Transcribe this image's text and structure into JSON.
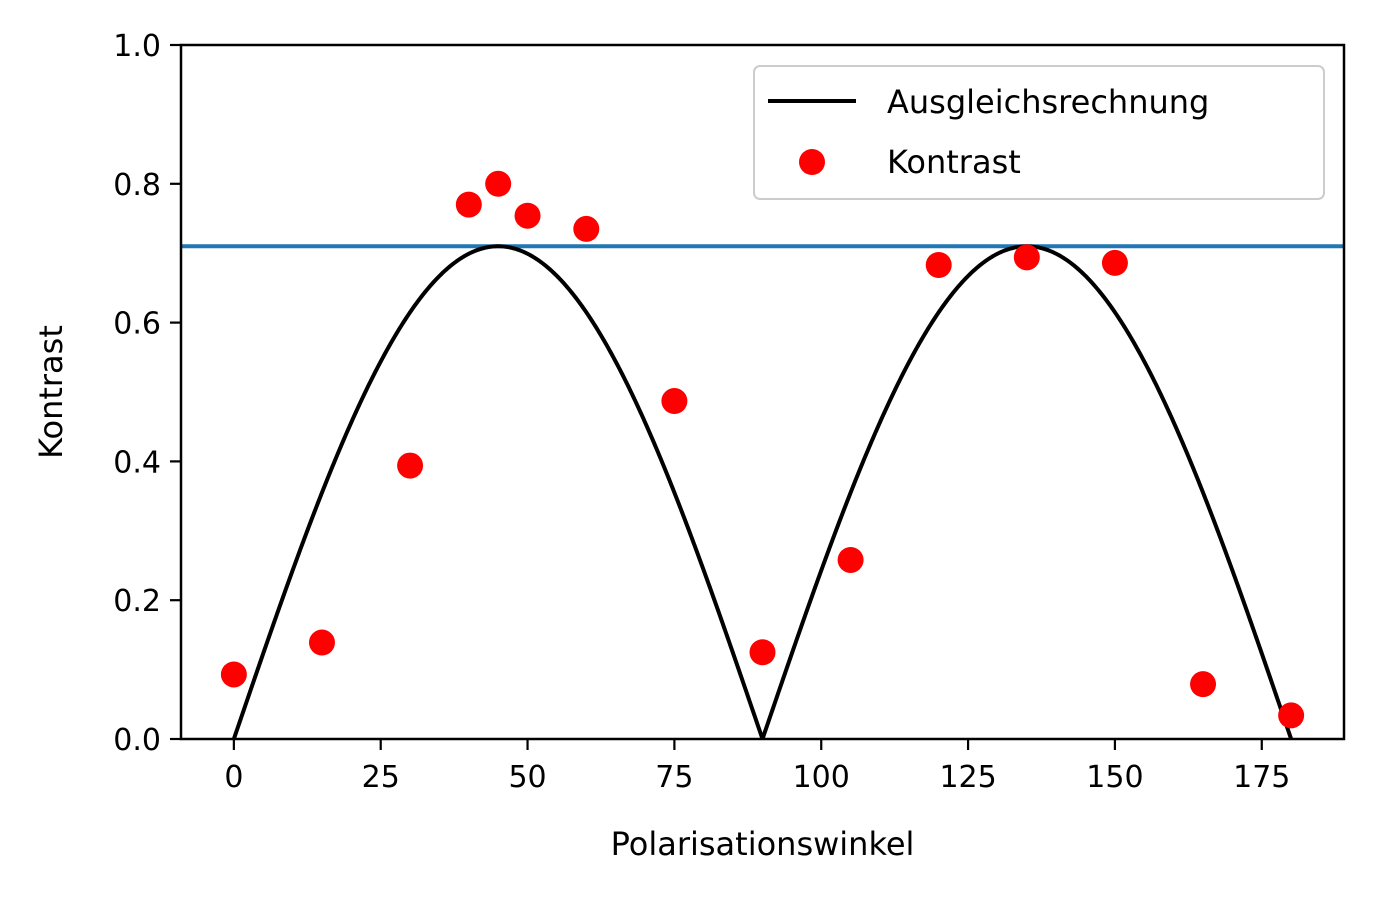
{
  "chart_data": {
    "type": "scatter",
    "xlabel": "Polarisationswinkel",
    "ylabel": "Kontrast",
    "xlim": [
      -9,
      189
    ],
    "ylim": [
      0.0,
      1.0
    ],
    "x_ticks": [
      "0",
      "25",
      "50",
      "75",
      "100",
      "125",
      "150",
      "175"
    ],
    "y_ticks": [
      "0.0",
      "0.2",
      "0.4",
      "0.6",
      "0.8",
      "1.0"
    ],
    "grid": false,
    "legend_position": "top-right",
    "series": [
      {
        "name": "Ausgleichsrechnung",
        "kind": "line",
        "color": "#000000",
        "function": "amplitude*abs(sin(2*x))",
        "amplitude": 0.71,
        "x_range": [
          0,
          180
        ]
      },
      {
        "name": "Kontrast",
        "kind": "scatter",
        "color": "#ff0000",
        "x": [
          0,
          15,
          30,
          40,
          45,
          50,
          60,
          75,
          90,
          105,
          120,
          135,
          150,
          165,
          180
        ],
        "y": [
          0.093,
          0.139,
          0.394,
          0.77,
          0.8,
          0.754,
          0.735,
          0.487,
          0.125,
          0.258,
          0.683,
          0.694,
          0.686,
          0.079,
          0.034
        ]
      },
      {
        "kind": "hline",
        "color": "#1f77b4",
        "y": 0.71
      }
    ]
  }
}
